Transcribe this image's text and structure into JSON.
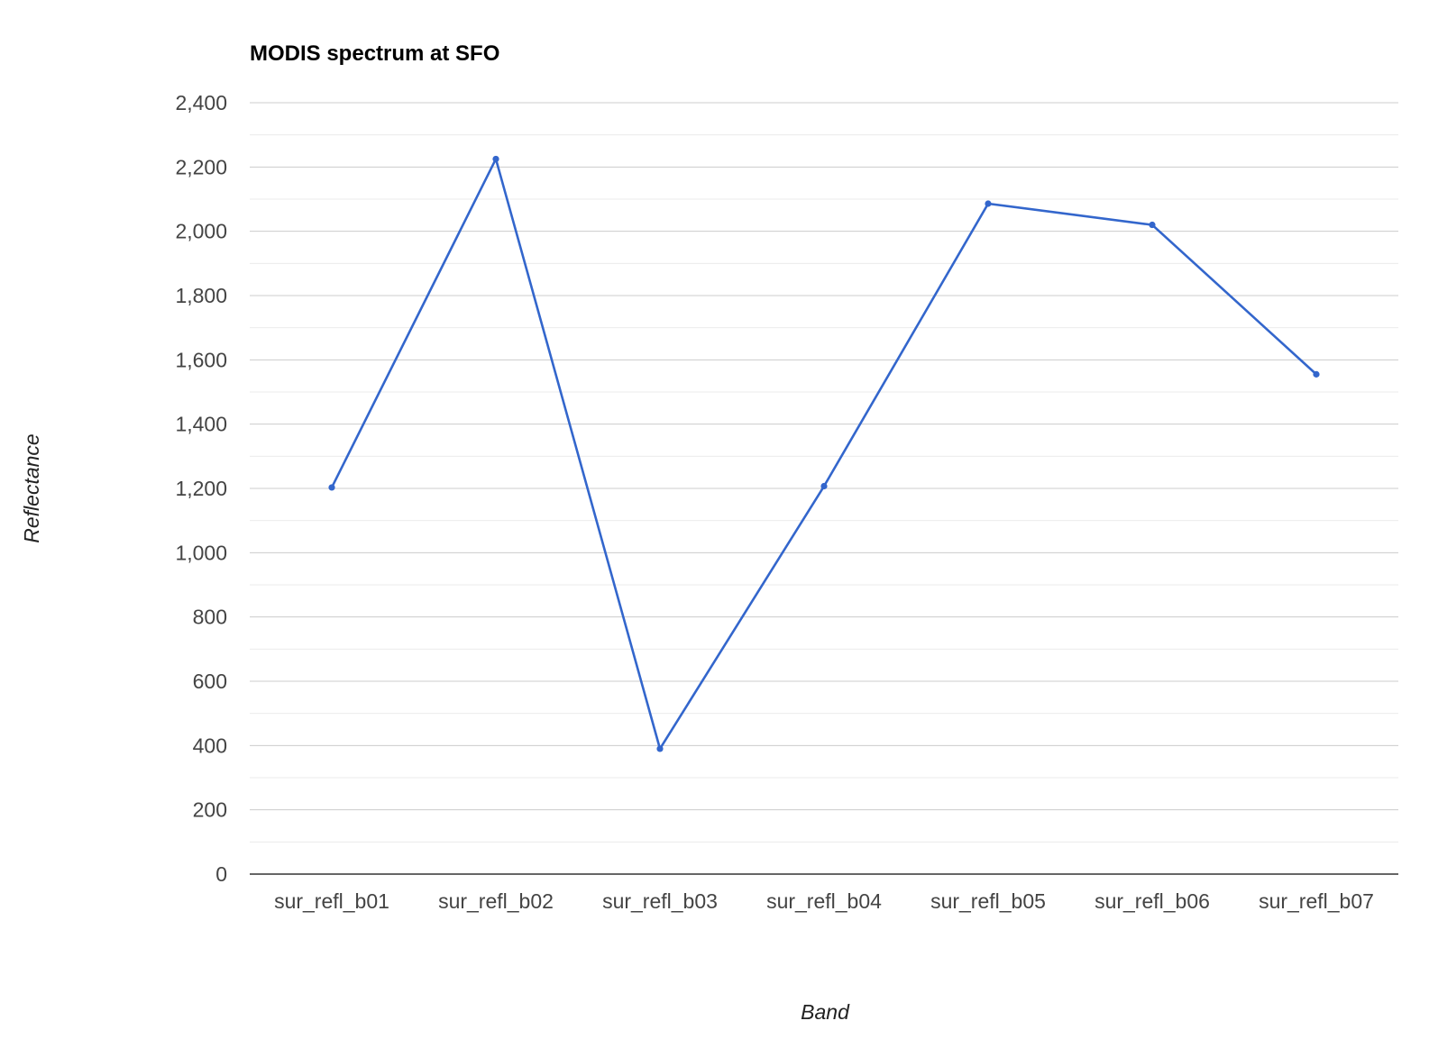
{
  "chart_data": {
    "type": "line",
    "title": "MODIS spectrum at SFO",
    "xlabel": "Band",
    "ylabel": "Reflectance",
    "categories": [
      "sur_refl_b01",
      "sur_refl_b02",
      "sur_refl_b03",
      "sur_refl_b04",
      "sur_refl_b05",
      "sur_refl_b06",
      "sur_refl_b07"
    ],
    "series": [
      {
        "color": "#3366cc",
        "values": [
          1203,
          2225,
          390,
          1207,
          2086,
          2020,
          1555
        ]
      }
    ],
    "ylim": [
      0,
      2400
    ],
    "yticks": [
      0,
      200,
      400,
      600,
      800,
      1000,
      1200,
      1400,
      1600,
      1800,
      2000,
      2200,
      2400
    ],
    "ytick_labels": [
      "0",
      "200",
      "400",
      "600",
      "800",
      "1,000",
      "1,200",
      "1,400",
      "1,600",
      "1,800",
      "2,000",
      "2,200",
      "2,400"
    ],
    "grid": true,
    "minor_grid": true,
    "legend": "none",
    "colors": {
      "line": "#3366cc",
      "gridline": "#cccccc",
      "minor_gridline": "#ebebeb",
      "baseline": "#333333"
    }
  }
}
